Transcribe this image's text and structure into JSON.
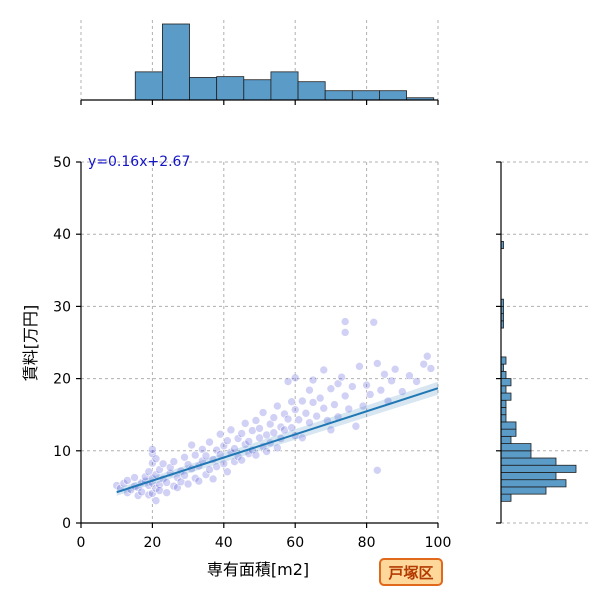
{
  "chart_data": {
    "type": "scatter",
    "title": "",
    "xlabel": "専有面積[m2]",
    "ylabel": "賃料[万円]",
    "xlim": [
      0,
      100
    ],
    "ylim": [
      0,
      50
    ],
    "x_ticks": [
      0,
      20,
      40,
      60,
      80,
      100
    ],
    "y_ticks": [
      0,
      10,
      20,
      30,
      40,
      50
    ],
    "grid": true,
    "annotation": "y=0.16x+2.67",
    "badge": "戸塚区",
    "regression": {
      "slope": 0.16,
      "intercept": 2.67,
      "x_range": [
        10,
        100
      ]
    },
    "colors": {
      "points": "#5a5adc",
      "line": "#1f77b4",
      "bars": "#5b9bc8",
      "badge_bg": "#fdd89a",
      "badge_border": "#e0691c"
    },
    "x_histogram": {
      "bin_edges": [
        0,
        7.6,
        15.2,
        22.8,
        30.4,
        38,
        45.6,
        53.2,
        60.8,
        68.4,
        76,
        83.6,
        91.2,
        98.8
      ],
      "counts": [
        0,
        0,
        10,
        27,
        8,
        8.3,
        7.2,
        10,
        6.5,
        3.3,
        3.3,
        3.3,
        0.8
      ]
    },
    "y_histogram": {
      "bins": [
        3,
        4,
        5,
        6,
        7,
        8,
        9,
        10,
        11,
        12,
        13,
        14,
        15,
        16,
        17,
        18,
        19,
        20,
        21,
        22,
        27,
        28,
        29,
        30,
        38
      ],
      "counts": [
        2,
        9,
        13,
        11,
        15,
        11,
        6,
        6,
        2,
        3,
        3,
        1,
        1,
        1,
        2,
        1,
        2,
        1,
        0.5,
        1,
        0.5,
        0.5,
        0.5,
        0.5,
        0.5
      ]
    },
    "points": [
      [
        10,
        5.2
      ],
      [
        11,
        4.8
      ],
      [
        12,
        5.5
      ],
      [
        13,
        4.2
      ],
      [
        13,
        5.9
      ],
      [
        14,
        4.6
      ],
      [
        15,
        5.1
      ],
      [
        15,
        6.3
      ],
      [
        16,
        3.8
      ],
      [
        16,
        4.9
      ],
      [
        17,
        5.6
      ],
      [
        17,
        4.3
      ],
      [
        18,
        5.8
      ],
      [
        18,
        6.4
      ],
      [
        19,
        3.9
      ],
      [
        19,
        5.2
      ],
      [
        19,
        7.1
      ],
      [
        20,
        4.1
      ],
      [
        20,
        5.5
      ],
      [
        20,
        6.2
      ],
      [
        20,
        8.3
      ],
      [
        20,
        9.6
      ],
      [
        20,
        10.2
      ],
      [
        21,
        3.1
      ],
      [
        21,
        4.8
      ],
      [
        21,
        6.7
      ],
      [
        21,
        8.9
      ],
      [
        22,
        5.3
      ],
      [
        22,
        7.4
      ],
      [
        22,
        4.5
      ],
      [
        23,
        6.1
      ],
      [
        23,
        8.2
      ],
      [
        24,
        5.6
      ],
      [
        24,
        4.2
      ],
      [
        25,
        6.9
      ],
      [
        25,
        7.7
      ],
      [
        26,
        5.1
      ],
      [
        26,
        8.5
      ],
      [
        27,
        6.3
      ],
      [
        27,
        4.9
      ],
      [
        28,
        7.2
      ],
      [
        28,
        5.7
      ],
      [
        29,
        9.1
      ],
      [
        29,
        6.6
      ],
      [
        30,
        5.4
      ],
      [
        30,
        8.1
      ],
      [
        31,
        7.5
      ],
      [
        31,
        10.8
      ],
      [
        32,
        6.2
      ],
      [
        32,
        9.4
      ],
      [
        33,
        5.8
      ],
      [
        33,
        7.9
      ],
      [
        34,
        8.6
      ],
      [
        34,
        10.2
      ],
      [
        35,
        6.7
      ],
      [
        35,
        9.3
      ],
      [
        36,
        7.4
      ],
      [
        36,
        11.2
      ],
      [
        37,
        8.8
      ],
      [
        37,
        6.1
      ],
      [
        38,
        10.1
      ],
      [
        38,
        7.8
      ],
      [
        39,
        9.5
      ],
      [
        39,
        12.3
      ],
      [
        40,
        8.2
      ],
      [
        40,
        10.7
      ],
      [
        41,
        7.1
      ],
      [
        41,
        11.4
      ],
      [
        42,
        9.8
      ],
      [
        42,
        12.9
      ],
      [
        43,
        8.5
      ],
      [
        43,
        10.3
      ],
      [
        44,
        11.7
      ],
      [
        44,
        9.2
      ],
      [
        45,
        12.4
      ],
      [
        45,
        8.7
      ],
      [
        46,
        10.9
      ],
      [
        46,
        13.8
      ],
      [
        47,
        9.6
      ],
      [
        47,
        11.3
      ],
      [
        48,
        12.8
      ],
      [
        48,
        10.1
      ],
      [
        49,
        14.2
      ],
      [
        49,
        9.4
      ],
      [
        50,
        11.8
      ],
      [
        50,
        13.1
      ],
      [
        51,
        10.6
      ],
      [
        51,
        15.3
      ],
      [
        52,
        12.2
      ],
      [
        52,
        9.9
      ],
      [
        53,
        13.7
      ],
      [
        53,
        11.1
      ],
      [
        54,
        14.6
      ],
      [
        54,
        12.5
      ],
      [
        55,
        10.4
      ],
      [
        55,
        16.2
      ],
      [
        56,
        13.3
      ],
      [
        56,
        11.7
      ],
      [
        57,
        15.1
      ],
      [
        57,
        12.9
      ],
      [
        58,
        14.4
      ],
      [
        58,
        19.6
      ],
      [
        59,
        13.2
      ],
      [
        59,
        16.8
      ],
      [
        60,
        12.1
      ],
      [
        60,
        15.7
      ],
      [
        60,
        20.1
      ],
      [
        61,
        14.3
      ],
      [
        62,
        16.9
      ],
      [
        62,
        11.8
      ],
      [
        63,
        15.2
      ],
      [
        64,
        18.4
      ],
      [
        64,
        13.9
      ],
      [
        65,
        16.7
      ],
      [
        65,
        19.8
      ],
      [
        66,
        14.8
      ],
      [
        67,
        17.3
      ],
      [
        68,
        15.9
      ],
      [
        68,
        21.2
      ],
      [
        69,
        14.2
      ],
      [
        70,
        18.6
      ],
      [
        70,
        12.9
      ],
      [
        71,
        16.4
      ],
      [
        72,
        19.3
      ],
      [
        72,
        14.7
      ],
      [
        73,
        20.2
      ],
      [
        74,
        17.6
      ],
      [
        74,
        27.9
      ],
      [
        74,
        26.4
      ],
      [
        75,
        15.8
      ],
      [
        76,
        18.9
      ],
      [
        77,
        13.4
      ],
      [
        78,
        21.7
      ],
      [
        79,
        16.2
      ],
      [
        80,
        19.1
      ],
      [
        81,
        17.8
      ],
      [
        82,
        27.8
      ],
      [
        83,
        7.3
      ],
      [
        83,
        22.1
      ],
      [
        84,
        18.4
      ],
      [
        85,
        20.6
      ],
      [
        86,
        16.9
      ],
      [
        87,
        19.7
      ],
      [
        88,
        21.3
      ],
      [
        90,
        18.2
      ],
      [
        92,
        20.4
      ],
      [
        94,
        19.6
      ],
      [
        96,
        22.0
      ],
      [
        97,
        23.1
      ],
      [
        98,
        21.4
      ]
    ]
  }
}
